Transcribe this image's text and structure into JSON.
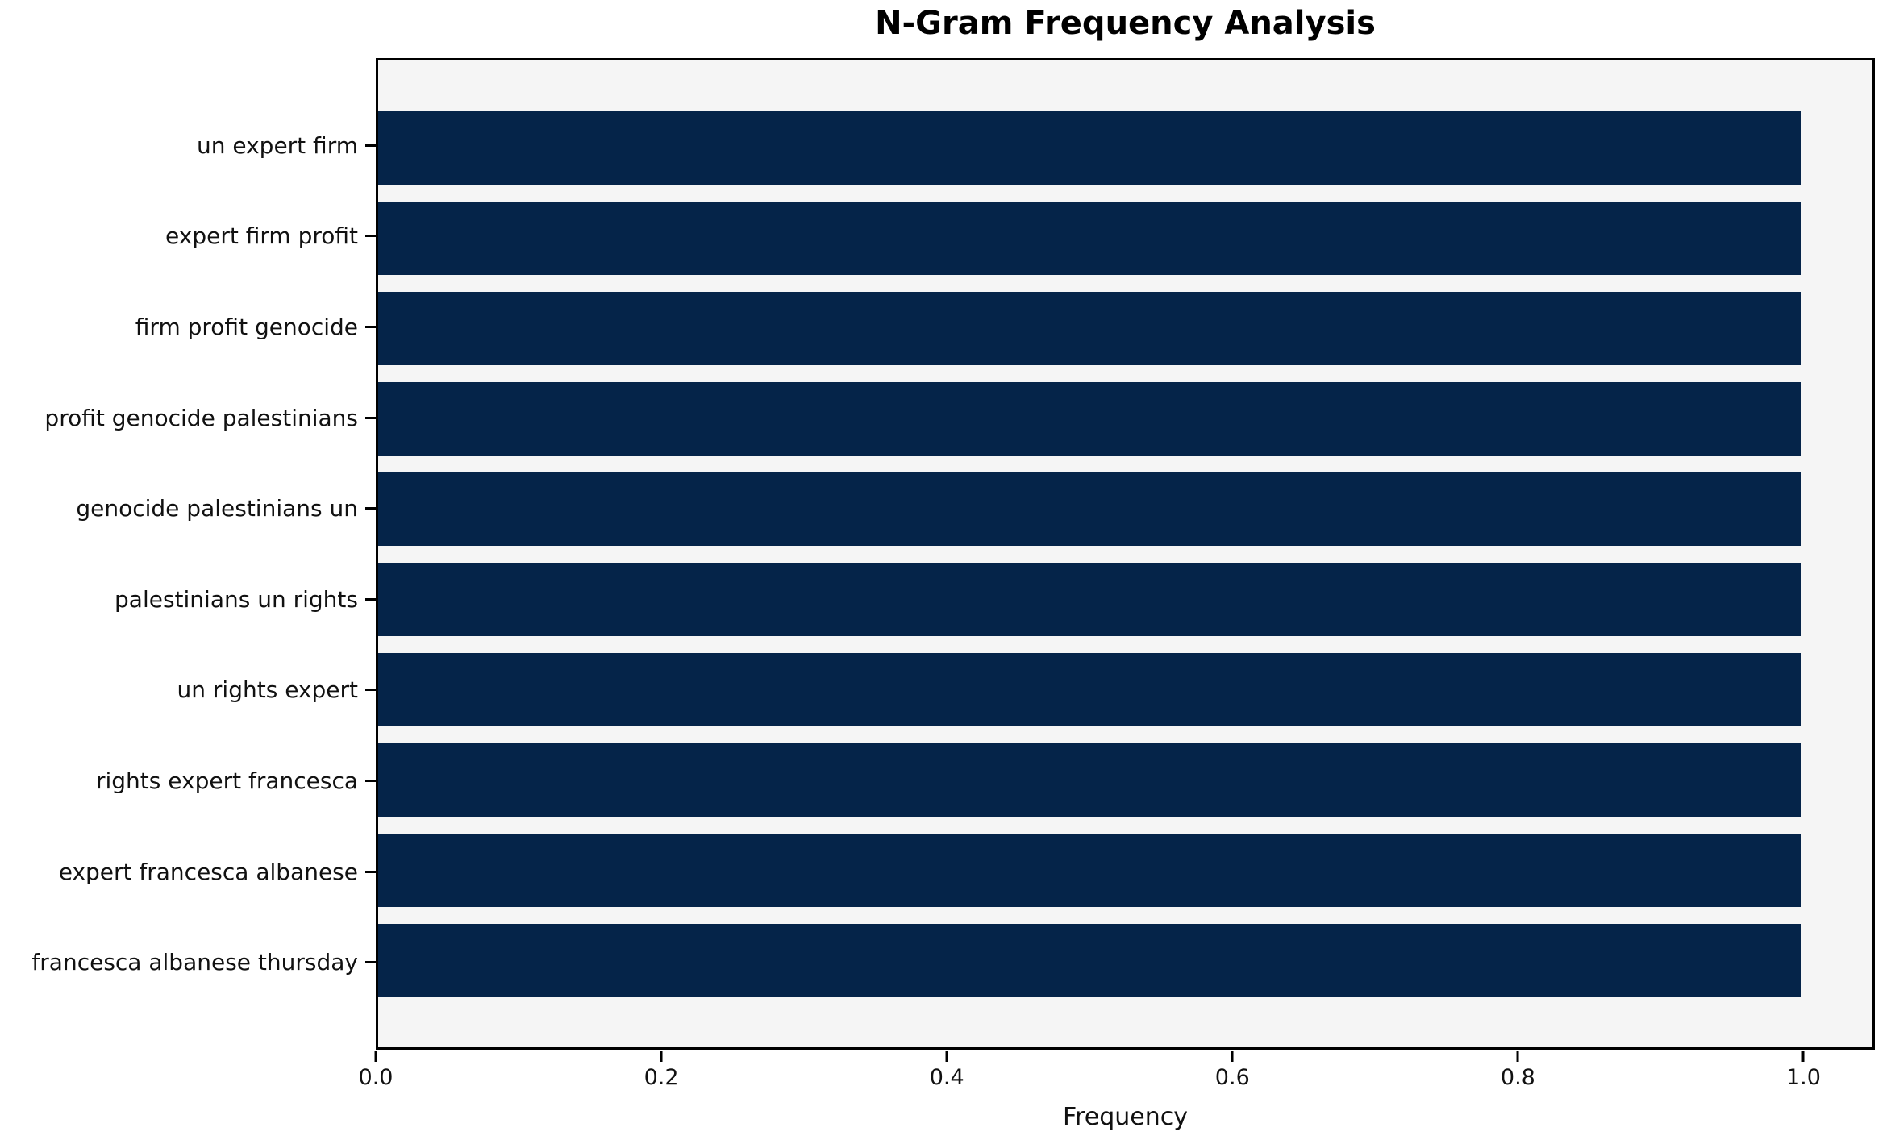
{
  "chart_data": {
    "type": "bar",
    "orientation": "horizontal",
    "title": "N-Gram Frequency Analysis",
    "xlabel": "Frequency",
    "categories": [
      "un expert firm",
      "expert firm profit",
      "firm profit genocide",
      "profit genocide palestinians",
      "genocide palestinians un",
      "palestinians un rights",
      "un rights expert",
      "rights expert francesca",
      "expert francesca albanese",
      "francesca albanese thursday"
    ],
    "values": [
      1.0,
      1.0,
      1.0,
      1.0,
      1.0,
      1.0,
      1.0,
      1.0,
      1.0,
      1.0
    ],
    "xticks": [
      0.0,
      0.2,
      0.4,
      0.6,
      0.8,
      1.0
    ],
    "xtick_labels": [
      "0.0",
      "0.2",
      "0.4",
      "0.6",
      "0.8",
      "1.0"
    ],
    "xlim": [
      0,
      1.05
    ],
    "grid": false,
    "legend_position": "none",
    "colors": {
      "bar": "#052449",
      "plot_background": "#f5f5f5",
      "figure_background": "#ffffff",
      "spine": "#000000",
      "text": "#111111"
    }
  }
}
